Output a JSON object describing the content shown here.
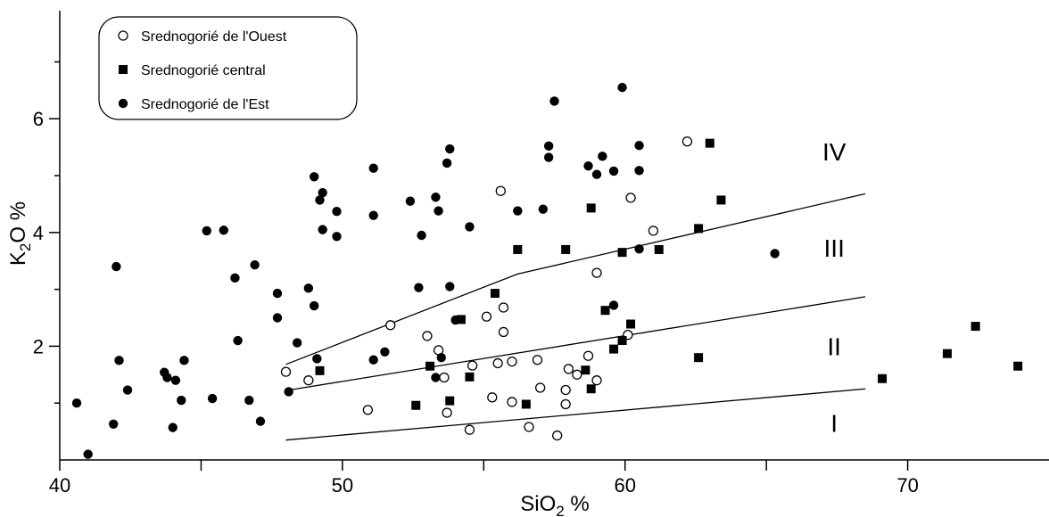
{
  "chart_data": {
    "type": "scatter",
    "xlabel": "SiO",
    "xlabel_sub": "2",
    "xlabel_tail": " %",
    "ylabel": "K",
    "ylabel_sub": "2",
    "ylabel_tail": "O %",
    "xlim": [
      40,
      75
    ],
    "ylim": [
      0,
      7.9
    ],
    "xticks": [
      40,
      50,
      60,
      70
    ],
    "xticks_minor": [
      45,
      55,
      65
    ],
    "yticks": [
      2,
      4,
      6
    ],
    "yticks_minor": [
      1,
      3,
      5,
      7
    ],
    "grid": false,
    "legend_position": "top-left",
    "legend": [
      {
        "label": "Srednogorié de l'Ouest",
        "marker": "circle-open"
      },
      {
        "label": "Srednogorié central",
        "marker": "square-filled"
      },
      {
        "label": "Srednogorié de l'Est",
        "marker": "circle-filled"
      }
    ],
    "series": [
      {
        "name": "Srednogorié de l'Ouest",
        "marker": "circle-open",
        "points": [
          [
            48,
            1.55
          ],
          [
            48.8,
            1.4
          ],
          [
            50.9,
            0.88
          ],
          [
            51.7,
            2.37
          ],
          [
            53,
            2.18
          ],
          [
            53.4,
            1.93
          ],
          [
            53.6,
            1.45
          ],
          [
            53.7,
            0.83
          ],
          [
            54.5,
            0.53
          ],
          [
            54.6,
            1.66
          ],
          [
            55.1,
            2.52
          ],
          [
            55.3,
            1.1
          ],
          [
            55.5,
            1.7
          ],
          [
            55.6,
            4.73
          ],
          [
            55.7,
            2.68
          ],
          [
            55.7,
            2.25
          ],
          [
            56,
            1.73
          ],
          [
            56,
            1.02
          ],
          [
            56.6,
            0.58
          ],
          [
            56.9,
            1.76
          ],
          [
            57,
            1.27
          ],
          [
            57.6,
            0.43
          ],
          [
            57.9,
            0.98
          ],
          [
            57.9,
            1.23
          ],
          [
            58,
            1.6
          ],
          [
            58.3,
            1.5
          ],
          [
            58.7,
            1.83
          ],
          [
            59,
            3.29
          ],
          [
            59,
            1.4
          ],
          [
            60.1,
            2.2
          ],
          [
            60.2,
            4.61
          ],
          [
            61,
            4.03
          ],
          [
            62.2,
            5.6
          ]
        ]
      },
      {
        "name": "Srednogorié central",
        "marker": "square-filled",
        "points": [
          [
            49.2,
            1.57
          ],
          [
            52.6,
            0.96
          ],
          [
            53.1,
            1.65
          ],
          [
            53.8,
            1.04
          ],
          [
            54.2,
            2.47
          ],
          [
            54.5,
            1.46
          ],
          [
            55.4,
            2.93
          ],
          [
            56.2,
            3.7
          ],
          [
            56.5,
            0.98
          ],
          [
            57.9,
            3.7
          ],
          [
            58.6,
            1.58
          ],
          [
            58.8,
            4.43
          ],
          [
            58.8,
            1.25
          ],
          [
            59.3,
            2.63
          ],
          [
            59.6,
            1.95
          ],
          [
            59.9,
            2.1
          ],
          [
            59.9,
            3.65
          ],
          [
            60.2,
            2.39
          ],
          [
            61.2,
            3.7
          ],
          [
            62.6,
            4.07
          ],
          [
            62.6,
            1.8
          ],
          [
            63,
            5.57
          ],
          [
            63.4,
            4.57
          ],
          [
            69.1,
            1.43
          ],
          [
            71.4,
            1.87
          ],
          [
            72.4,
            2.35
          ],
          [
            73.9,
            1.65
          ]
        ]
      },
      {
        "name": "Srednogorié de l'Est",
        "marker": "circle-filled",
        "points": [
          [
            40.6,
            1
          ],
          [
            41,
            0.1
          ],
          [
            41.9,
            0.63
          ],
          [
            42,
            3.4
          ],
          [
            42.1,
            1.75
          ],
          [
            42.4,
            1.23
          ],
          [
            43.7,
            1.54
          ],
          [
            43.8,
            1.45
          ],
          [
            44,
            0.57
          ],
          [
            44.1,
            1.4
          ],
          [
            44.3,
            1.05
          ],
          [
            44.4,
            1.75
          ],
          [
            45.2,
            4.03
          ],
          [
            45.4,
            1.08
          ],
          [
            45.8,
            4.04
          ],
          [
            46.2,
            3.2
          ],
          [
            46.3,
            2.1
          ],
          [
            46.7,
            1.05
          ],
          [
            46.9,
            3.43
          ],
          [
            47.1,
            0.68
          ],
          [
            47.7,
            2.93
          ],
          [
            47.7,
            2.5
          ],
          [
            48.1,
            1.2
          ],
          [
            48.4,
            2.06
          ],
          [
            48.8,
            3.02
          ],
          [
            49,
            4.98
          ],
          [
            49,
            2.71
          ],
          [
            49.1,
            1.78
          ],
          [
            49.2,
            4.57
          ],
          [
            49.3,
            4.05
          ],
          [
            49.3,
            4.7
          ],
          [
            49.8,
            3.93
          ],
          [
            49.8,
            4.37
          ],
          [
            51.1,
            5.13
          ],
          [
            51.1,
            4.3
          ],
          [
            51.1,
            1.76
          ],
          [
            51.5,
            1.9
          ],
          [
            52.4,
            4.55
          ],
          [
            52.7,
            3.03
          ],
          [
            52.8,
            3.95
          ],
          [
            53.3,
            4.62
          ],
          [
            53.3,
            1.45
          ],
          [
            53.4,
            4.38
          ],
          [
            53.5,
            1.8
          ],
          [
            53.7,
            5.22
          ],
          [
            53.8,
            5.47
          ],
          [
            53.8,
            3.05
          ],
          [
            54,
            2.46
          ],
          [
            54.5,
            4.1
          ],
          [
            56.2,
            4.38
          ],
          [
            57.1,
            4.41
          ],
          [
            57.3,
            5.52
          ],
          [
            57.3,
            5.32
          ],
          [
            57.5,
            6.31
          ],
          [
            58.7,
            5.17
          ],
          [
            59,
            5.02
          ],
          [
            59.2,
            5.34
          ],
          [
            59.6,
            5.08
          ],
          [
            59.6,
            2.72
          ],
          [
            59.9,
            6.55
          ],
          [
            60.5,
            3.71
          ],
          [
            60.5,
            5.53
          ],
          [
            60.5,
            5.09
          ],
          [
            65.3,
            3.63
          ]
        ]
      }
    ],
    "boundaries": [
      {
        "name": "I/II",
        "points": [
          [
            48,
            0.35
          ],
          [
            68.5,
            1.25
          ]
        ]
      },
      {
        "name": "II/III",
        "points": [
          [
            48,
            1.22
          ],
          [
            68.5,
            2.87
          ]
        ]
      },
      {
        "name": "III/IV",
        "points": [
          [
            48,
            1.68
          ],
          [
            56.2,
            3.27
          ],
          [
            68.5,
            4.68
          ]
        ]
      }
    ],
    "zone_labels": [
      {
        "text": "I",
        "x": 67.4,
        "y": 0.65
      },
      {
        "text": "II",
        "x": 67.4,
        "y": 2.0
      },
      {
        "text": "III",
        "x": 67.4,
        "y": 3.73
      },
      {
        "text": "IV",
        "x": 67.4,
        "y": 5.42
      }
    ]
  }
}
